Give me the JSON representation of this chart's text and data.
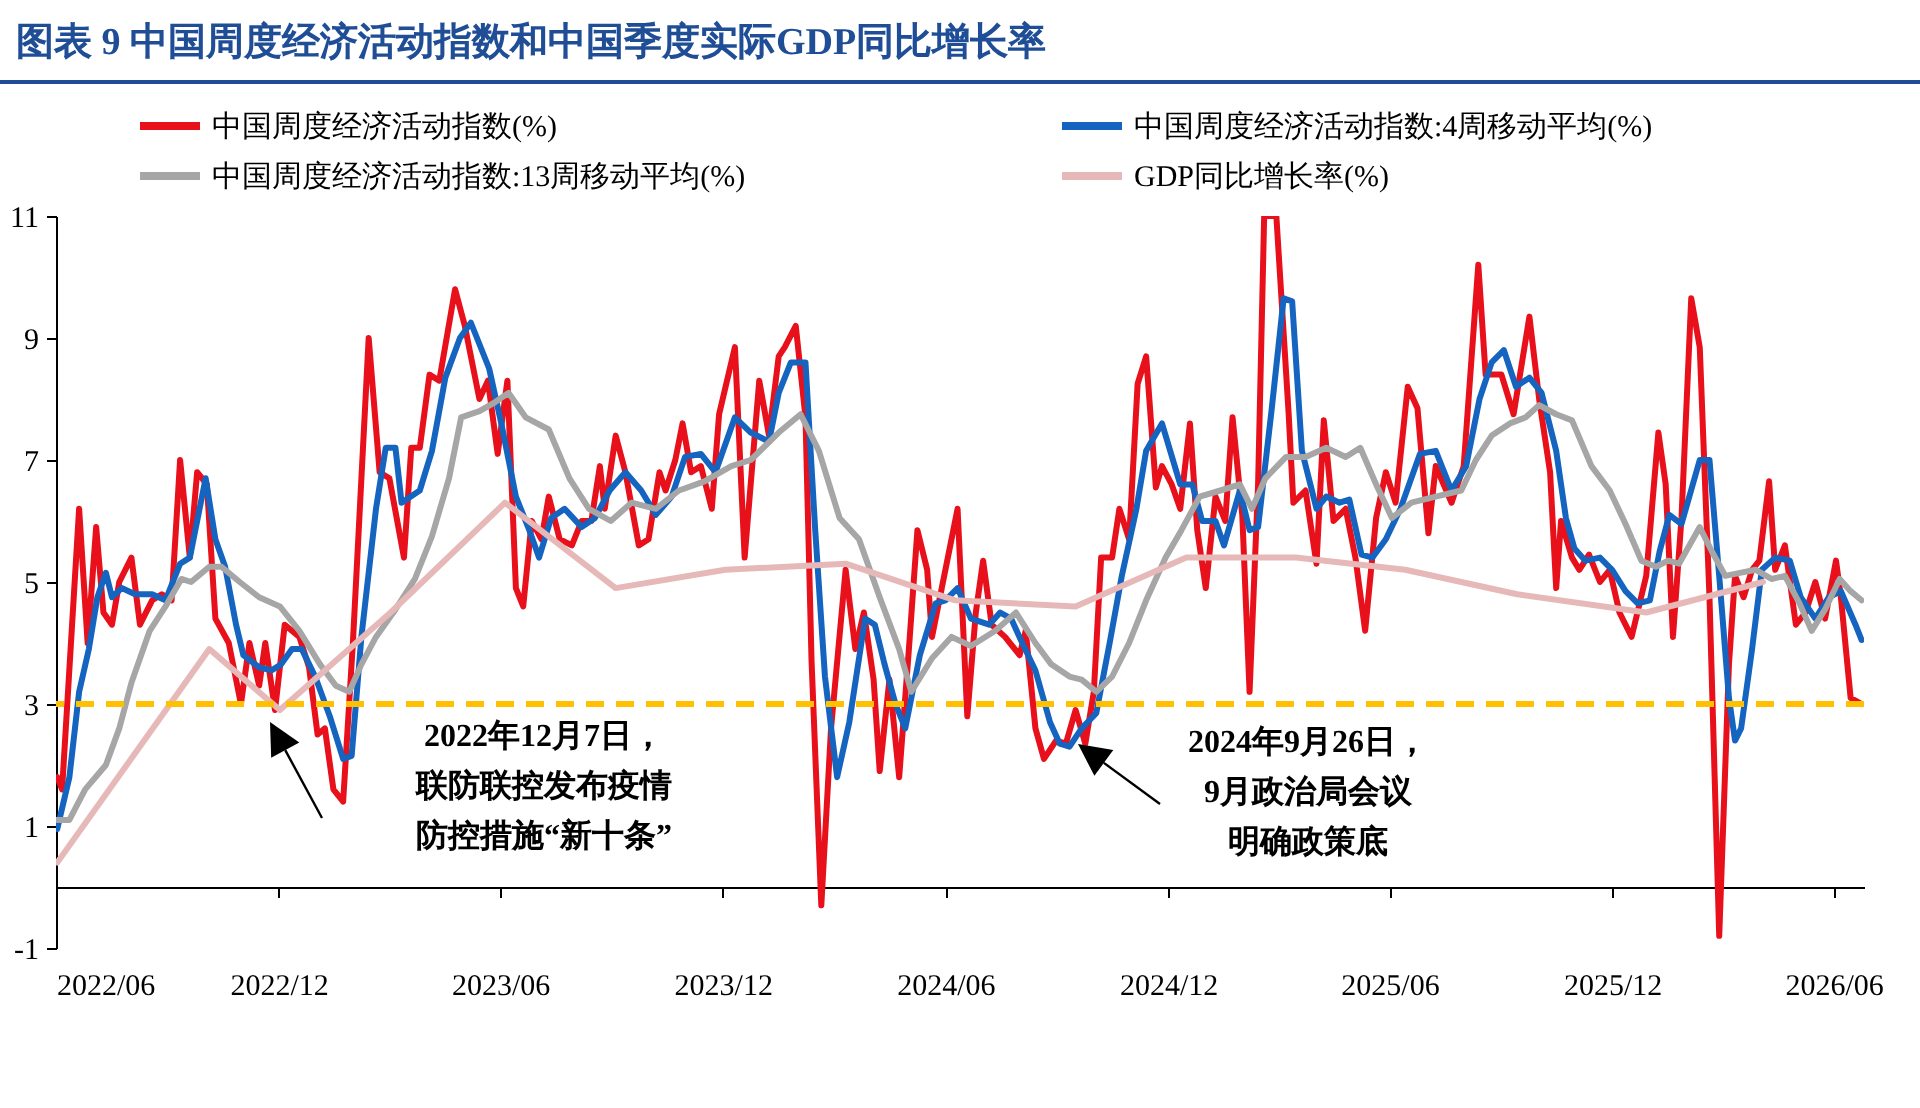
{
  "chart_data": {
    "type": "line",
    "title": "图表 9 中国周度经济活动指数和中国季度实际GDP同比增长率",
    "xlim": [
      "2022-06-01",
      "2026-06-26"
    ],
    "xticks": [
      {
        "value": "2022-06-01",
        "label": "2022/06"
      },
      {
        "value": "2022-12-01",
        "label": "2022/12"
      },
      {
        "value": "2023-06-01",
        "label": "2023/06"
      },
      {
        "value": "2023-12-01",
        "label": "2023/12"
      },
      {
        "value": "2024-06-01",
        "label": "2024/06"
      },
      {
        "value": "2024-12-01",
        "label": "2024/12"
      },
      {
        "value": "2025-06-01",
        "label": "2025/06"
      },
      {
        "value": "2025-12-01",
        "label": "2025/12"
      },
      {
        "value": "2026-06-01",
        "label": "2026/06"
      }
    ],
    "ylim": [
      -1,
      11
    ],
    "yticks": [
      -1,
      1,
      3,
      5,
      7,
      9,
      11
    ],
    "legend": "top",
    "series": [
      {
        "name": "中国周度经济活动指数(%)",
        "color": "#e8101a",
        "x": [
          "2022-06-02",
          "2022-06-06",
          "2022-06-20",
          "2022-06-27",
          "2022-07-04",
          "2022-07-10",
          "2022-07-17",
          "2022-07-23",
          "2022-08-02",
          "2022-08-09",
          "2022-08-19",
          "2022-08-27",
          "2022-09-04",
          "2022-09-11",
          "2022-09-19",
          "2022-09-25",
          "2022-10-03",
          "2022-10-10",
          "2022-10-21",
          "2022-10-31",
          "2022-11-07",
          "2022-11-15",
          "2022-11-20",
          "2022-11-28",
          "2022-12-06",
          "2022-12-18",
          "2022-12-26",
          "2023-01-02",
          "2023-01-08",
          "2023-01-15",
          "2023-01-23",
          "2023-01-31",
          "2023-02-13",
          "2023-02-22",
          "2023-03-02",
          "2023-03-14",
          "2023-03-20",
          "2023-03-27",
          "2023-04-04",
          "2023-04-12",
          "2023-04-25",
          "2023-05-03",
          "2023-05-15",
          "2023-05-22",
          "2023-05-30",
          "2023-06-07",
          "2023-06-14",
          "2023-06-20",
          "2023-06-27",
          "2023-07-05",
          "2023-07-11",
          "2023-07-20",
          "2023-07-30",
          "2023-08-07",
          "2023-08-15",
          "2023-08-22",
          "2023-08-26",
          "2023-09-04",
          "2023-09-12",
          "2023-09-23",
          "2023-10-01",
          "2023-10-10",
          "2023-10-15",
          "2023-10-23",
          "2023-10-29",
          "2023-11-05",
          "2023-11-13",
          "2023-11-22",
          "2023-11-28",
          "2023-12-11",
          "2023-12-19",
          "2023-12-31",
          "2024-01-08",
          "2024-01-16",
          "2024-01-21",
          "2024-01-30",
          "2024-02-07",
          "2024-02-12",
          "2024-02-20",
          "2024-02-28",
          "2024-03-11",
          "2024-03-19",
          "2024-03-26",
          "2024-04-03",
          "2024-04-08",
          "2024-04-16",
          "2024-04-24",
          "2024-05-02",
          "2024-05-09",
          "2024-05-17",
          "2024-05-21",
          "2024-05-29",
          "2024-06-11",
          "2024-06-19",
          "2024-06-26",
          "2024-07-02",
          "2024-07-09",
          "2024-07-20",
          "2024-08-01",
          "2024-08-06",
          "2024-08-14",
          "2024-08-21",
          "2024-08-31",
          "2024-09-08",
          "2024-09-16",
          "2024-09-24",
          "2024-10-01",
          "2024-10-07",
          "2024-10-16",
          "2024-10-22",
          "2024-10-30",
          "2024-11-06",
          "2024-11-13",
          "2024-11-21",
          "2024-11-26",
          "2024-12-04",
          "2024-12-11",
          "2024-12-19",
          "2024-12-25",
          "2025-01-01",
          "2025-01-09",
          "2025-01-17",
          "2025-01-23",
          "2025-01-31",
          "2025-02-06",
          "2025-02-13",
          "2025-02-18",
          "2025-02-28",
          "2025-03-10",
          "2025-03-14",
          "2025-03-24",
          "2025-04-02",
          "2025-04-08",
          "2025-04-16",
          "2025-04-26",
          "2025-05-04",
          "2025-05-12",
          "2025-05-21",
          "2025-05-29",
          "2025-06-06",
          "2025-06-16",
          "2025-06-24",
          "2025-07-03",
          "2025-07-09",
          "2025-07-22",
          "2025-08-01",
          "2025-08-13",
          "2025-08-19",
          "2025-09-01",
          "2025-09-11",
          "2025-09-24",
          "2025-10-02",
          "2025-10-11",
          "2025-10-16",
          "2025-10-20",
          "2025-10-29",
          "2025-11-04",
          "2025-11-12",
          "2025-11-21",
          "2025-11-29",
          "2025-12-07",
          "2025-12-17",
          "2025-12-29",
          "2026-01-08",
          "2026-01-14",
          "2026-01-20",
          "2026-01-27",
          "2026-02-04",
          "2026-02-11",
          "2026-02-19",
          "2026-02-27",
          "2026-03-07",
          "2026-03-12",
          "2026-03-19",
          "2026-03-26",
          "2026-04-01",
          "2026-04-09",
          "2026-04-14",
          "2026-04-22",
          "2026-05-01",
          "2026-05-09",
          "2026-05-17",
          "2026-05-25",
          "2026-06-03",
          "2026-06-07",
          "2026-06-15",
          "2026-06-24"
        ],
        "values": [
          1.8,
          1.6,
          6.2,
          4.0,
          5.9,
          4.5,
          4.3,
          5.0,
          5.4,
          4.3,
          4.7,
          4.8,
          4.7,
          7.0,
          5.4,
          6.8,
          6.6,
          4.4,
          4.0,
          3.0,
          4.0,
          3.3,
          4.0,
          2.9,
          4.3,
          4.1,
          3.6,
          2.5,
          2.6,
          1.6,
          1.4,
          4.0,
          9.0,
          6.8,
          6.7,
          5.4,
          7.2,
          7.2,
          8.4,
          8.3,
          9.8,
          9.2,
          8.0,
          8.3,
          7.1,
          8.3,
          4.9,
          4.6,
          6.0,
          5.7,
          6.4,
          5.7,
          5.6,
          6.0,
          6.0,
          6.9,
          6.2,
          7.4,
          6.8,
          5.6,
          5.7,
          6.8,
          6.5,
          7.0,
          7.6,
          6.8,
          6.9,
          6.2,
          7.75,
          8.85,
          5.4,
          8.3,
          7.4,
          8.7,
          8.85,
          9.2,
          7.7,
          3.7,
          -0.3,
          2.6,
          5.2,
          3.9,
          4.5,
          3.4,
          1.9,
          3.4,
          1.8,
          3.9,
          5.85,
          5.2,
          4.1,
          4.9,
          6.2,
          2.8,
          4.5,
          5.35,
          4.3,
          4.1,
          3.8,
          4.2,
          2.6,
          2.1,
          2.4,
          2.35,
          2.9,
          2.35,
          3.2,
          5.4,
          5.4,
          6.2,
          5.7,
          8.25,
          8.7,
          6.55,
          6.9,
          6.6,
          6.2,
          7.6,
          5.85,
          4.9,
          6.4,
          6.0,
          7.7,
          6.1,
          3.2,
          6.6,
          11.0,
          11.0,
          7.8,
          6.3,
          6.5,
          5.3,
          7.65,
          6.0,
          6.2,
          5.4,
          4.2,
          6.05,
          6.8,
          6.3,
          8.2,
          7.85,
          5.8,
          6.9,
          6.3,
          6.9,
          10.2,
          8.4,
          8.4,
          7.75,
          9.35,
          8.0,
          6.8,
          4.9,
          6.0,
          5.4,
          5.2,
          5.45,
          5.0,
          5.2,
          4.5,
          4.1,
          5.1,
          7.45,
          6.6,
          4.1,
          6.05,
          9.65,
          8.85,
          4.75,
          -0.8,
          3.65,
          5.1,
          4.75,
          5.2,
          5.35,
          6.65,
          5.2,
          5.6,
          4.3,
          4.5,
          5.0,
          4.4,
          5.35,
          4.75,
          3.1,
          3.0
        ]
      },
      {
        "name": "中国周度经济活动指数:4周移动平均(%)",
        "color": "#1565c0",
        "x": [
          "2022-06-02",
          "2022-06-12",
          "2022-06-20",
          "2022-06-28",
          "2022-07-05",
          "2022-07-12",
          "2022-07-17",
          "2022-07-25",
          "2022-08-05",
          "2022-08-19",
          "2022-08-30",
          "2022-09-11",
          "2022-09-19",
          "2022-10-02",
          "2022-10-10",
          "2022-10-18",
          "2022-10-27",
          "2022-11-02",
          "2022-11-15",
          "2022-11-25",
          "2022-12-03",
          "2022-12-12",
          "2022-12-20",
          "2022-12-31",
          "2023-01-12",
          "2023-01-23",
          "2023-01-30",
          "2023-02-07",
          "2023-02-19",
          "2023-02-27",
          "2023-03-07",
          "2023-03-12",
          "2023-03-27",
          "2023-04-06",
          "2023-04-17",
          "2023-04-29",
          "2023-05-08",
          "2023-05-23",
          "2023-06-02",
          "2023-06-14",
          "2023-06-25",
          "2023-07-03",
          "2023-07-13",
          "2023-07-24",
          "2023-08-07",
          "2023-08-18",
          "2023-08-30",
          "2023-09-12",
          "2023-09-25",
          "2023-10-07",
          "2023-10-20",
          "2023-10-31",
          "2023-11-13",
          "2023-11-25",
          "2023-12-11",
          "2023-12-24",
          "2024-01-08",
          "2024-01-16",
          "2024-01-26",
          "2024-02-07",
          "2024-02-15",
          "2024-02-23",
          "2024-03-04",
          "2024-03-14",
          "2024-03-27",
          "2024-04-04",
          "2024-04-12",
          "2024-04-21",
          "2024-04-29",
          "2024-05-11",
          "2024-05-24",
          "2024-06-01",
          "2024-06-11",
          "2024-06-22",
          "2024-07-07",
          "2024-07-16",
          "2024-07-25",
          "2024-08-02",
          "2024-08-14",
          "2024-08-26",
          "2024-09-03",
          "2024-09-11",
          "2024-09-21",
          "2024-10-03",
          "2024-10-14",
          "2024-10-24",
          "2024-11-05",
          "2024-11-13",
          "2024-11-26",
          "2024-12-11",
          "2024-12-21",
          "2024-12-29",
          "2025-01-09",
          "2025-01-16",
          "2025-01-29",
          "2025-02-06",
          "2025-02-13",
          "2025-02-24",
          "2025-03-06",
          "2025-03-13",
          "2025-03-21",
          "2025-04-02",
          "2025-04-10",
          "2025-04-21",
          "2025-04-29",
          "2025-05-09",
          "2025-05-18",
          "2025-05-29",
          "2025-06-10",
          "2025-06-26",
          "2025-07-09",
          "2025-07-22",
          "2025-08-03",
          "2025-08-14",
          "2025-08-24",
          "2025-09-03",
          "2025-09-13",
          "2025-09-24",
          "2025-10-04",
          "2025-10-16",
          "2025-10-24",
          "2025-10-31",
          "2025-11-09",
          "2025-11-21",
          "2025-12-01",
          "2025-12-12",
          "2025-12-22",
          "2026-01-01",
          "2026-01-09",
          "2026-01-17",
          "2026-01-27",
          "2026-02-11",
          "2026-02-19",
          "2026-02-27",
          "2026-03-07",
          "2026-03-12",
          "2026-03-17",
          "2026-03-26",
          "2026-04-03",
          "2026-04-14",
          "2026-04-26",
          "2026-05-05",
          "2026-05-17",
          "2026-05-28",
          "2026-06-07",
          "2026-06-19",
          "2026-06-24"
        ],
        "values": [
          0.95,
          1.8,
          3.2,
          3.9,
          4.75,
          5.15,
          4.75,
          4.9,
          4.8,
          4.8,
          4.7,
          5.3,
          5.4,
          6.7,
          5.7,
          5.25,
          4.3,
          3.8,
          3.6,
          3.55,
          3.65,
          3.9,
          3.9,
          3.45,
          2.8,
          2.1,
          2.15,
          4.1,
          6.2,
          7.2,
          7.2,
          6.3,
          6.5,
          7.15,
          8.35,
          9.0,
          9.25,
          8.5,
          7.6,
          6.4,
          5.85,
          5.4,
          6.05,
          6.2,
          5.9,
          6.05,
          6.5,
          6.8,
          6.5,
          6.1,
          6.4,
          7.05,
          7.1,
          6.8,
          7.7,
          7.45,
          7.3,
          8.1,
          8.6,
          8.6,
          5.85,
          3.45,
          1.8,
          2.7,
          4.4,
          4.3,
          3.65,
          3.0,
          2.6,
          3.8,
          4.65,
          4.7,
          4.9,
          4.4,
          4.3,
          4.5,
          4.4,
          4.05,
          3.55,
          2.7,
          2.35,
          2.3,
          2.6,
          2.85,
          4.0,
          5.1,
          6.2,
          7.15,
          7.6,
          6.6,
          6.6,
          6.0,
          6.0,
          5.6,
          6.5,
          5.85,
          5.9,
          7.8,
          9.65,
          9.6,
          7.15,
          6.2,
          6.4,
          6.3,
          6.35,
          5.45,
          5.4,
          5.7,
          6.2,
          7.1,
          7.15,
          6.5,
          6.9,
          8.0,
          8.6,
          8.8,
          8.2,
          8.35,
          8.1,
          7.15,
          6.05,
          5.55,
          5.35,
          5.4,
          5.2,
          4.85,
          4.65,
          4.7,
          5.5,
          6.1,
          5.95,
          7.0,
          7.0,
          5.1,
          3.1,
          2.4,
          2.6,
          3.9,
          5.2,
          5.4,
          5.35,
          4.75,
          4.4,
          4.75,
          4.85,
          4.3,
          4.05
        ]
      },
      {
        "name": "中国周度经济活动指数:13周移动平均(%)",
        "color": "#a6a6a6",
        "x": [
          "2022-06-02",
          "2022-06-12",
          "2022-06-25",
          "2022-07-12",
          "2022-07-23",
          "2022-08-02",
          "2022-08-17",
          "2022-08-30",
          "2022-09-12",
          "2022-09-20",
          "2022-10-05",
          "2022-10-15",
          "2022-10-30",
          "2022-11-15",
          "2022-12-02",
          "2022-12-18",
          "2023-01-04",
          "2023-01-17",
          "2023-01-28",
          "2023-02-07",
          "2023-02-19",
          "2023-03-07",
          "2023-03-23",
          "2023-04-06",
          "2023-04-20",
          "2023-04-30",
          "2023-05-15",
          "2023-05-28",
          "2023-06-08",
          "2023-06-22",
          "2023-07-11",
          "2023-07-28",
          "2023-08-13",
          "2023-08-31",
          "2023-09-17",
          "2023-10-07",
          "2023-10-26",
          "2023-11-16",
          "2023-12-08",
          "2023-12-24",
          "2024-01-16",
          "2024-02-03",
          "2024-02-18",
          "2024-03-06",
          "2024-03-22",
          "2024-04-08",
          "2024-04-24",
          "2024-05-04",
          "2024-05-21",
          "2024-06-06",
          "2024-06-22",
          "2024-07-12",
          "2024-07-29",
          "2024-08-14",
          "2024-08-27",
          "2024-09-11",
          "2024-09-21",
          "2024-10-03",
          "2024-10-16",
          "2024-10-30",
          "2024-11-13",
          "2024-11-29",
          "2024-12-12",
          "2024-12-27",
          "2025-01-13",
          "2025-01-29",
          "2025-02-08",
          "2025-02-19",
          "2025-03-08",
          "2025-03-24",
          "2025-04-10",
          "2025-04-26",
          "2025-05-08",
          "2025-05-21",
          "2025-06-03",
          "2025-06-19",
          "2025-07-09",
          "2025-07-30",
          "2025-08-11",
          "2025-08-24",
          "2025-09-08",
          "2025-09-21",
          "2025-10-02",
          "2025-10-16",
          "2025-10-29",
          "2025-11-14",
          "2025-11-29",
          "2025-12-12",
          "2025-12-25",
          "2026-01-06",
          "2026-01-16",
          "2026-01-25",
          "2026-02-11",
          "2026-02-21",
          "2026-03-04",
          "2026-03-16",
          "2026-03-29",
          "2026-04-11",
          "2026-04-22",
          "2026-05-04",
          "2026-05-14",
          "2026-05-25",
          "2026-06-06",
          "2026-06-15",
          "2026-06-24"
        ],
        "values": [
          1.1,
          1.1,
          1.6,
          2.0,
          2.6,
          3.35,
          4.2,
          4.6,
          5.05,
          5.0,
          5.25,
          5.25,
          5.0,
          4.75,
          4.6,
          4.2,
          3.65,
          3.3,
          3.2,
          3.65,
          4.1,
          4.55,
          5.05,
          5.75,
          6.7,
          7.7,
          7.8,
          7.95,
          8.1,
          7.7,
          7.5,
          6.7,
          6.2,
          6.0,
          6.3,
          6.2,
          6.5,
          6.65,
          6.9,
          7.0,
          7.45,
          7.75,
          7.15,
          6.05,
          5.7,
          4.75,
          3.9,
          3.2,
          3.75,
          4.1,
          3.95,
          4.2,
          4.5,
          4.0,
          3.65,
          3.45,
          3.4,
          3.2,
          3.45,
          4.0,
          4.7,
          5.4,
          5.85,
          6.4,
          6.5,
          6.6,
          6.2,
          6.7,
          7.05,
          7.05,
          7.2,
          7.05,
          7.2,
          6.6,
          6.05,
          6.3,
          6.4,
          6.5,
          7.0,
          7.4,
          7.6,
          7.7,
          7.9,
          7.75,
          7.65,
          6.9,
          6.5,
          5.95,
          5.35,
          5.25,
          5.35,
          5.3,
          5.9,
          5.5,
          5.1,
          5.15,
          5.2,
          5.05,
          5.1,
          4.65,
          4.2,
          4.55,
          5.05,
          4.85,
          4.7
        ]
      },
      {
        "name": "GDP同比增长率(%)",
        "color": "#e6b9b8",
        "x": [
          "2022-06-02",
          "2022-10-05",
          "2022-12-02",
          "2023-03-03",
          "2023-06-05",
          "2023-09-04",
          "2023-12-03",
          "2024-03-11",
          "2024-06-09",
          "2024-09-16",
          "2024-12-16",
          "2025-03-16",
          "2025-06-14",
          "2025-09-14",
          "2025-12-29",
          "2026-04-04"
        ],
        "values": [
          0.4,
          3.9,
          2.9,
          4.5,
          6.3,
          4.9,
          5.2,
          5.3,
          4.7,
          4.6,
          5.4,
          5.4,
          5.2,
          4.8,
          4.5,
          5.0
        ]
      }
    ],
    "ref_lines": [
      {
        "axis": "y",
        "value": 3,
        "color": "#ffc000",
        "line_style": "dashed"
      }
    ],
    "annotations": [
      "2022年12月7日，联防联控发布疫情防控措施“新十条”",
      "2024年9月26日，9月政治局会议明确政策底"
    ]
  }
}
